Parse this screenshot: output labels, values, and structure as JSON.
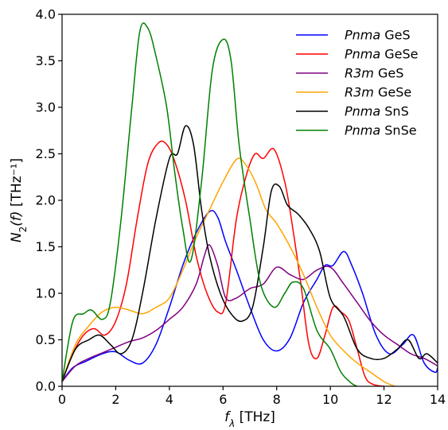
{
  "chart_data": {
    "type": "line",
    "xlabel": {
      "italic": "f",
      "sub": "λ",
      "unit": " [THz]"
    },
    "ylabel": {
      "italic": "N",
      "sub": "2",
      "arg": "(f)",
      "unit": " [THz⁻¹]"
    },
    "xlim": [
      0,
      14
    ],
    "ylim": [
      0,
      4.0
    ],
    "xticks": [
      0,
      2,
      4,
      6,
      8,
      10,
      12,
      14
    ],
    "xtick_labels": [
      "0",
      "2",
      "4",
      "6",
      "8",
      "10",
      "12",
      "14"
    ],
    "yticks": [
      0,
      0.5,
      1.0,
      1.5,
      2.0,
      2.5,
      3.0,
      3.5,
      4.0
    ],
    "ytick_labels": [
      "0.0",
      "0.5",
      "1.0",
      "1.5",
      "2.0",
      "2.5",
      "3.0",
      "3.5",
      "4.0"
    ],
    "grid": false,
    "legend_position": "top-right",
    "series": [
      {
        "name": "Pnma GeS",
        "name_italic": "Pnma",
        "name_rest": " GeS",
        "color": "#0000ff",
        "points": [
          [
            0,
            0.05
          ],
          [
            0.4,
            0.2
          ],
          [
            0.9,
            0.27
          ],
          [
            1.5,
            0.35
          ],
          [
            2.0,
            0.37
          ],
          [
            2.5,
            0.28
          ],
          [
            3.0,
            0.25
          ],
          [
            3.5,
            0.45
          ],
          [
            4.0,
            0.85
          ],
          [
            4.5,
            1.3
          ],
          [
            5.0,
            1.65
          ],
          [
            5.5,
            1.88
          ],
          [
            5.8,
            1.82
          ],
          [
            6.1,
            1.55
          ],
          [
            6.5,
            1.25
          ],
          [
            7.0,
            0.85
          ],
          [
            7.5,
            0.5
          ],
          [
            8.0,
            0.38
          ],
          [
            8.5,
            0.52
          ],
          [
            9.0,
            0.9
          ],
          [
            9.5,
            1.15
          ],
          [
            9.8,
            1.3
          ],
          [
            10.1,
            1.3
          ],
          [
            10.5,
            1.45
          ],
          [
            10.8,
            1.3
          ],
          [
            11.2,
            1.0
          ],
          [
            11.7,
            0.55
          ],
          [
            12.2,
            0.35
          ],
          [
            12.7,
            0.45
          ],
          [
            13.1,
            0.55
          ],
          [
            13.5,
            0.25
          ],
          [
            13.9,
            0.15
          ],
          [
            14,
            0.2
          ]
        ]
      },
      {
        "name": "Pnma GeSe",
        "name_italic": "Pnma",
        "name_rest": " GeSe",
        "color": "#ff0000",
        "points": [
          [
            0,
            0.05
          ],
          [
            0.4,
            0.35
          ],
          [
            0.8,
            0.55
          ],
          [
            1.2,
            0.62
          ],
          [
            1.6,
            0.55
          ],
          [
            2.0,
            0.7
          ],
          [
            2.4,
            1.1
          ],
          [
            2.8,
            1.8
          ],
          [
            3.2,
            2.4
          ],
          [
            3.6,
            2.62
          ],
          [
            3.9,
            2.6
          ],
          [
            4.2,
            2.42
          ],
          [
            4.6,
            2.0
          ],
          [
            5.0,
            1.4
          ],
          [
            5.4,
            1.0
          ],
          [
            5.8,
            0.8
          ],
          [
            6.1,
            0.9
          ],
          [
            6.5,
            1.8
          ],
          [
            6.9,
            2.3
          ],
          [
            7.2,
            2.5
          ],
          [
            7.5,
            2.45
          ],
          [
            7.9,
            2.55
          ],
          [
            8.3,
            2.2
          ],
          [
            8.6,
            1.7
          ],
          [
            8.9,
            1.1
          ],
          [
            9.2,
            0.45
          ],
          [
            9.5,
            0.3
          ],
          [
            9.8,
            0.55
          ],
          [
            10.1,
            0.85
          ],
          [
            10.4,
            0.8
          ],
          [
            10.7,
            0.7
          ],
          [
            11.0,
            0.4
          ],
          [
            11.3,
            0.1
          ],
          [
            11.6,
            0.02
          ],
          [
            12.0,
            0.0
          ]
        ]
      },
      {
        "name": "R3m GeS",
        "name_italic": "R3m",
        "name_rest": " GeS",
        "color": "#800080",
        "points": [
          [
            0,
            0.05
          ],
          [
            0.5,
            0.22
          ],
          [
            1.0,
            0.3
          ],
          [
            1.5,
            0.36
          ],
          [
            2.0,
            0.42
          ],
          [
            2.5,
            0.48
          ],
          [
            3.0,
            0.52
          ],
          [
            3.5,
            0.6
          ],
          [
            4.0,
            0.72
          ],
          [
            4.5,
            0.85
          ],
          [
            5.0,
            1.1
          ],
          [
            5.3,
            1.4
          ],
          [
            5.5,
            1.52
          ],
          [
            5.8,
            1.3
          ],
          [
            6.1,
            0.95
          ],
          [
            6.5,
            0.95
          ],
          [
            7.0,
            1.05
          ],
          [
            7.5,
            1.1
          ],
          [
            8.0,
            1.28
          ],
          [
            8.5,
            1.2
          ],
          [
            9.0,
            1.15
          ],
          [
            9.5,
            1.25
          ],
          [
            10.0,
            1.28
          ],
          [
            10.5,
            1.1
          ],
          [
            11.0,
            0.9
          ],
          [
            11.5,
            0.7
          ],
          [
            12.0,
            0.55
          ],
          [
            12.5,
            0.45
          ],
          [
            13.0,
            0.35
          ],
          [
            13.5,
            0.3
          ],
          [
            14,
            0.22
          ]
        ]
      },
      {
        "name": "R3m GeSe",
        "name_italic": "R3m",
        "name_rest": " GeSe",
        "color": "#ffa500",
        "points": [
          [
            0,
            0.05
          ],
          [
            0.5,
            0.45
          ],
          [
            1.0,
            0.65
          ],
          [
            1.5,
            0.8
          ],
          [
            2.0,
            0.85
          ],
          [
            2.5,
            0.82
          ],
          [
            3.0,
            0.78
          ],
          [
            3.5,
            0.85
          ],
          [
            4.0,
            0.95
          ],
          [
            4.5,
            1.25
          ],
          [
            5.0,
            1.6
          ],
          [
            5.5,
            1.9
          ],
          [
            6.0,
            2.2
          ],
          [
            6.5,
            2.44
          ],
          [
            6.8,
            2.4
          ],
          [
            7.2,
            2.2
          ],
          [
            7.6,
            1.9
          ],
          [
            8.0,
            1.75
          ],
          [
            8.5,
            1.5
          ],
          [
            9.0,
            1.2
          ],
          [
            9.5,
            0.85
          ],
          [
            10.0,
            0.55
          ],
          [
            10.5,
            0.38
          ],
          [
            11.0,
            0.25
          ],
          [
            11.5,
            0.15
          ],
          [
            12.0,
            0.05
          ],
          [
            12.4,
            0.0
          ]
        ]
      },
      {
        "name": "Pnma SnS",
        "name_italic": "Pnma",
        "name_rest": " SnS",
        "color": "#000000",
        "points": [
          [
            0,
            0.05
          ],
          [
            0.5,
            0.4
          ],
          [
            1.0,
            0.5
          ],
          [
            1.4,
            0.55
          ],
          [
            1.8,
            0.45
          ],
          [
            2.2,
            0.35
          ],
          [
            2.6,
            0.5
          ],
          [
            3.0,
            1.0
          ],
          [
            3.5,
            1.8
          ],
          [
            4.0,
            2.45
          ],
          [
            4.3,
            2.5
          ],
          [
            4.6,
            2.8
          ],
          [
            4.9,
            2.6
          ],
          [
            5.2,
            1.9
          ],
          [
            5.5,
            1.4
          ],
          [
            5.9,
            1.0
          ],
          [
            6.3,
            0.78
          ],
          [
            6.7,
            0.7
          ],
          [
            7.1,
            0.85
          ],
          [
            7.5,
            1.5
          ],
          [
            7.8,
            2.1
          ],
          [
            8.1,
            2.15
          ],
          [
            8.4,
            1.95
          ],
          [
            8.8,
            1.85
          ],
          [
            9.2,
            1.7
          ],
          [
            9.6,
            1.45
          ],
          [
            10.0,
            0.95
          ],
          [
            10.5,
            0.75
          ],
          [
            11.0,
            0.4
          ],
          [
            11.5,
            0.3
          ],
          [
            12.0,
            0.3
          ],
          [
            12.5,
            0.4
          ],
          [
            12.9,
            0.5
          ],
          [
            13.3,
            0.3
          ],
          [
            13.6,
            0.35
          ],
          [
            14,
            0.25
          ]
        ]
      },
      {
        "name": "Pnma SnSe",
        "name_italic": "Pnma",
        "name_rest": " SnSe",
        "color": "#008000",
        "points": [
          [
            0,
            0.05
          ],
          [
            0.4,
            0.7
          ],
          [
            0.8,
            0.78
          ],
          [
            1.1,
            0.82
          ],
          [
            1.5,
            0.72
          ],
          [
            1.8,
            0.9
          ],
          [
            2.2,
            1.8
          ],
          [
            2.6,
            3.0
          ],
          [
            2.9,
            3.82
          ],
          [
            3.2,
            3.85
          ],
          [
            3.5,
            3.55
          ],
          [
            3.9,
            3.0
          ],
          [
            4.2,
            2.3
          ],
          [
            4.5,
            1.7
          ],
          [
            4.8,
            1.35
          ],
          [
            5.2,
            2.2
          ],
          [
            5.6,
            3.4
          ],
          [
            6.0,
            3.73
          ],
          [
            6.3,
            3.5
          ],
          [
            6.6,
            2.6
          ],
          [
            7.0,
            1.8
          ],
          [
            7.4,
            1.1
          ],
          [
            7.9,
            0.85
          ],
          [
            8.3,
            1.0
          ],
          [
            8.6,
            1.12
          ],
          [
            9.0,
            1.05
          ],
          [
            9.5,
            0.6
          ],
          [
            10.0,
            0.4
          ],
          [
            10.4,
            0.15
          ],
          [
            10.8,
            0.03
          ],
          [
            11.0,
            0.0
          ]
        ]
      }
    ]
  }
}
